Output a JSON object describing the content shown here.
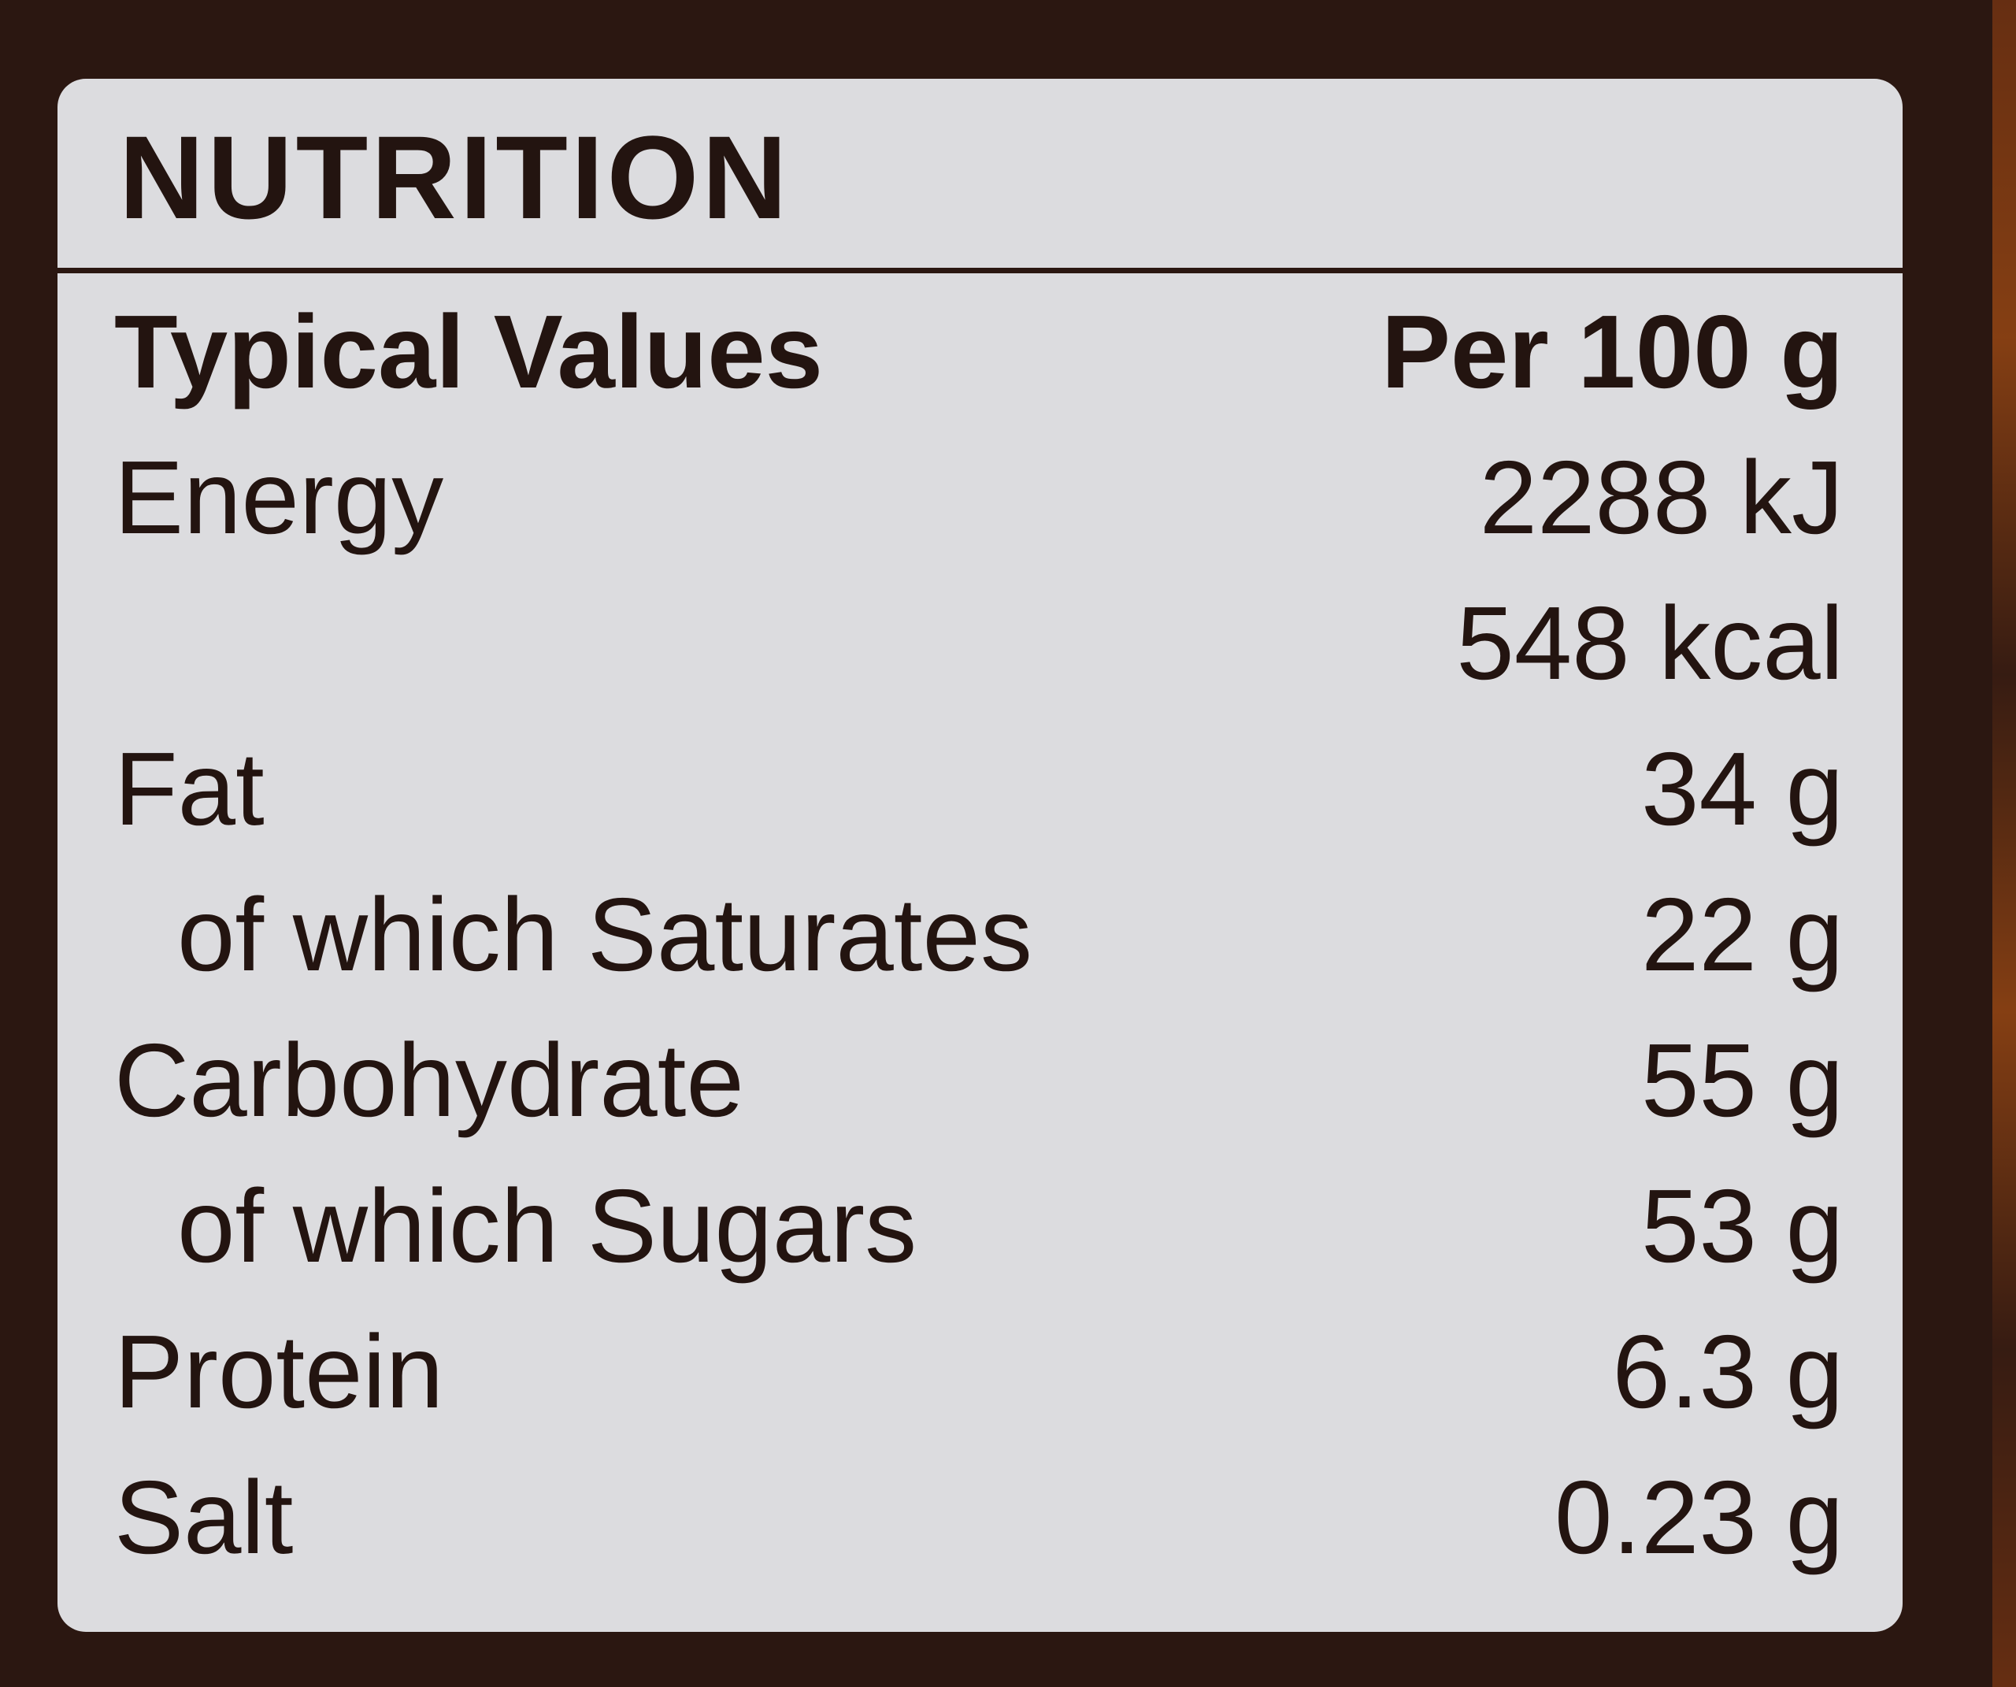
{
  "panel": {
    "title": "NUTRITION",
    "header": {
      "label": "Typical Values",
      "value": "Per 100 g"
    },
    "rows": [
      {
        "label": "Energy",
        "value": "2288 kJ"
      },
      {
        "label": "",
        "value": "548 kcal"
      },
      {
        "label": "Fat",
        "value": "34 g"
      },
      {
        "label": "of which Saturates",
        "value": "22 g"
      },
      {
        "label": "Carbohydrate",
        "value": "55 g"
      },
      {
        "label": "of which Sugars",
        "value": "53 g"
      },
      {
        "label": "Protein",
        "value": "6.3 g"
      },
      {
        "label": "Salt",
        "value": "0.23 g"
      }
    ]
  },
  "colors": {
    "background": "#2b1711",
    "panel": "#dcdcdf",
    "text": "#231410",
    "edge_accent": "#a34c14"
  }
}
